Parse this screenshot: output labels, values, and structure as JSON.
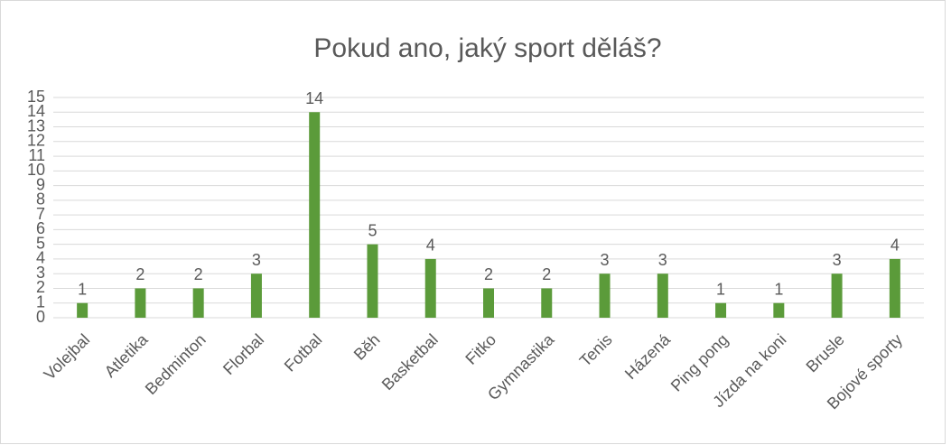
{
  "chart_data": {
    "type": "bar",
    "title": "Pokud ano, jaký sport děláš?",
    "categories": [
      "Volejbal",
      "Atletika",
      "Bedminton",
      "Florbal",
      "Fotbal",
      "Běh",
      "Basketbal",
      "Fitko",
      "Gymnastika",
      "Tenis",
      "Házená",
      "Ping pong",
      "Jízda na koni",
      "Brusle",
      "Bojové sporty"
    ],
    "values": [
      1,
      2,
      2,
      3,
      14,
      5,
      4,
      2,
      2,
      3,
      3,
      1,
      1,
      3,
      4
    ],
    "color": "#5b9b3a",
    "ylim": [
      0,
      15
    ],
    "yticks": [
      0,
      1,
      2,
      3,
      4,
      5,
      6,
      7,
      8,
      9,
      10,
      11,
      12,
      13,
      14,
      15
    ],
    "grid": true
  }
}
